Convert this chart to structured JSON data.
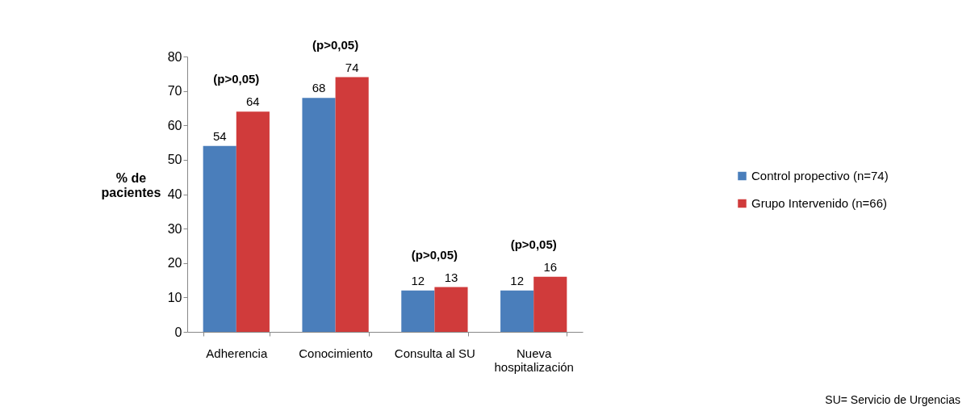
{
  "chart_data": {
    "type": "bar",
    "categories": [
      "Adherencia",
      "Conocimiento",
      "Consulta al SU",
      "Nueva hospitalización"
    ],
    "series": [
      {
        "name": "Control propectivo (n=74)",
        "color": "#4a7ebb",
        "values": [
          54,
          68,
          12,
          12
        ]
      },
      {
        "name": "Grupo Intervenido (n=66)",
        "color": "#d03b3b",
        "values": [
          64,
          74,
          13,
          16
        ]
      }
    ],
    "ylabel": "% de pacientes",
    "ylim": [
      0,
      80
    ],
    "yticks": [
      0,
      10,
      20,
      30,
      40,
      50,
      60,
      70,
      80
    ],
    "data_labels": true,
    "grid": false,
    "legend": "right",
    "annotations": [
      {
        "text": "(p>0,05)",
        "x": "Adherencia",
        "y": 64
      },
      {
        "text": "(p>0,05)",
        "x": "Conocimiento",
        "y": 74
      },
      {
        "text": "(p>0,05)",
        "x": "Consulta al SU",
        "y": 13
      },
      {
        "text": "(p>0,05)",
        "x": "Nueva hospitalización",
        "y": 16
      },
      "SU= Servicio de Urgencias"
    ]
  }
}
